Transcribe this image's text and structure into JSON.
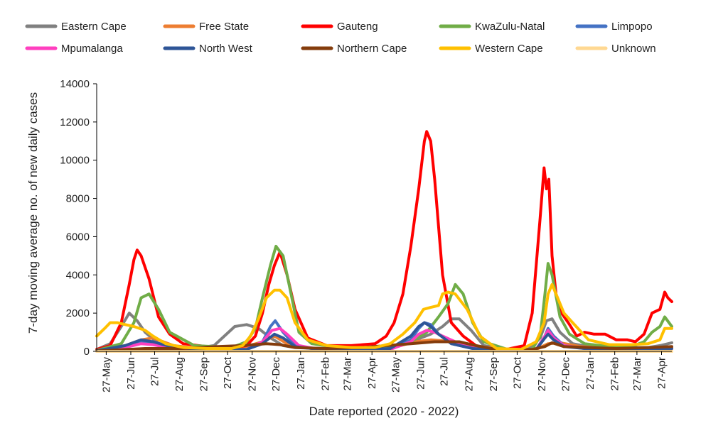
{
  "chart_data": {
    "type": "line",
    "xlabel": "Date reported (2020 - 2022)",
    "ylabel": "7-day moving average no. of new daily cases",
    "ylim": [
      0,
      14000
    ],
    "yticks": [
      0,
      2000,
      4000,
      6000,
      8000,
      10000,
      12000,
      14000
    ],
    "ytick_labels": [
      "0",
      "2000",
      "4000",
      "6000",
      "8000",
      "10000",
      "12000",
      "14000"
    ],
    "x_start": "2020-05-15",
    "x_end": "2022-05-10",
    "xtick_dates": [
      "2020-05-27",
      "2020-06-27",
      "2020-07-27",
      "2020-08-27",
      "2020-09-27",
      "2020-10-27",
      "2020-11-27",
      "2020-12-27",
      "2021-01-27",
      "2021-02-27",
      "2021-03-27",
      "2021-04-27",
      "2021-05-27",
      "2021-06-27",
      "2021-07-27",
      "2021-08-27",
      "2021-09-27",
      "2021-10-27",
      "2021-11-27",
      "2021-12-27",
      "2022-01-27",
      "2022-02-27",
      "2022-03-27",
      "2022-04-27"
    ],
    "xtick_labels": [
      "27-May",
      "27-Jun",
      "27-Jul",
      "27-Aug",
      "27-Sep",
      "27-Oct",
      "27-Nov",
      "27-Dec",
      "27-Jan",
      "27-Feb",
      "27-Mar",
      "27-Apr",
      "27-May",
      "27-Jun",
      "27-Jul",
      "27-Aug",
      "27-Sep",
      "27-Oct",
      "27-Nov",
      "27-Dec",
      "27-Jan",
      "27-Feb",
      "27-Mar",
      "27-Apr"
    ],
    "grid": false,
    "legend_position": "top",
    "series": [
      {
        "name": "Eastern Cape",
        "color": "#808080",
        "x": [
          "2020-05-15",
          "2020-06-01",
          "2020-06-15",
          "2020-06-25",
          "2020-07-05",
          "2020-07-15",
          "2020-08-01",
          "2020-08-20",
          "2020-09-15",
          "2020-10-10",
          "2020-11-05",
          "2020-11-20",
          "2020-12-05",
          "2020-12-20",
          "2021-01-05",
          "2021-01-20",
          "2021-02-15",
          "2021-03-15",
          "2021-04-15",
          "2021-05-15",
          "2021-06-15",
          "2021-07-10",
          "2021-07-25",
          "2021-08-05",
          "2021-08-15",
          "2021-08-30",
          "2021-09-15",
          "2021-10-15",
          "2021-11-10",
          "2021-11-25",
          "2021-12-03",
          "2021-12-10",
          "2021-12-20",
          "2022-01-05",
          "2022-01-25",
          "2022-02-15",
          "2022-03-15",
          "2022-04-10",
          "2022-04-25",
          "2022-05-10"
        ],
        "y": [
          100,
          400,
          1300,
          2000,
          1600,
          1000,
          400,
          200,
          150,
          300,
          1300,
          1400,
          1200,
          700,
          300,
          200,
          150,
          120,
          120,
          200,
          500,
          900,
          1300,
          1700,
          1700,
          1100,
          300,
          100,
          100,
          700,
          1600,
          1700,
          1000,
          400,
          250,
          200,
          200,
          200,
          300,
          450
        ]
      },
      {
        "name": "Free State",
        "color": "#ED7D31",
        "x": [
          "2020-05-15",
          "2020-06-20",
          "2020-07-10",
          "2020-07-25",
          "2020-08-20",
          "2020-10-01",
          "2020-11-15",
          "2020-12-10",
          "2020-12-25",
          "2021-01-10",
          "2021-02-10",
          "2021-04-01",
          "2021-05-20",
          "2021-06-20",
          "2021-07-10",
          "2021-08-10",
          "2021-09-10",
          "2021-10-15",
          "2021-11-20",
          "2021-12-05",
          "2021-12-20",
          "2022-01-15",
          "2022-02-20",
          "2022-04-01",
          "2022-05-10"
        ],
        "y": [
          50,
          300,
          600,
          700,
          300,
          100,
          200,
          500,
          800,
          400,
          150,
          100,
          150,
          500,
          600,
          500,
          250,
          80,
          100,
          400,
          450,
          250,
          150,
          150,
          200
        ]
      },
      {
        "name": "Gauteng",
        "color": "#FF0000",
        "x": [
          "2020-05-15",
          "2020-06-01",
          "2020-06-15",
          "2020-06-25",
          "2020-07-01",
          "2020-07-05",
          "2020-07-10",
          "2020-07-20",
          "2020-08-01",
          "2020-08-15",
          "2020-09-01",
          "2020-10-01",
          "2020-11-01",
          "2020-11-20",
          "2020-12-01",
          "2020-12-10",
          "2020-12-18",
          "2020-12-25",
          "2021-01-01",
          "2021-01-10",
          "2021-01-20",
          "2021-02-05",
          "2021-03-01",
          "2021-04-01",
          "2021-05-01",
          "2021-05-15",
          "2021-05-25",
          "2021-06-05",
          "2021-06-15",
          "2021-06-25",
          "2021-07-02",
          "2021-07-05",
          "2021-07-10",
          "2021-07-15",
          "2021-07-25",
          "2021-08-05",
          "2021-08-20",
          "2021-09-05",
          "2021-09-25",
          "2021-10-15",
          "2021-11-05",
          "2021-11-15",
          "2021-11-25",
          "2021-11-30",
          "2021-12-03",
          "2021-12-06",
          "2021-12-10",
          "2021-12-15",
          "2021-12-22",
          "2022-01-01",
          "2022-01-10",
          "2022-01-20",
          "2022-02-01",
          "2022-02-15",
          "2022-03-01",
          "2022-03-15",
          "2022-03-25",
          "2022-04-05",
          "2022-04-15",
          "2022-04-25",
          "2022-05-01",
          "2022-05-05",
          "2022-05-10"
        ],
        "y": [
          100,
          300,
          1500,
          3500,
          4800,
          5300,
          5000,
          3800,
          1800,
          900,
          400,
          250,
          200,
          300,
          800,
          2000,
          3500,
          4500,
          5200,
          4000,
          2200,
          700,
          300,
          300,
          400,
          800,
          1500,
          3000,
          5500,
          8500,
          11000,
          11500,
          11000,
          9000,
          4000,
          1500,
          800,
          300,
          120,
          120,
          300,
          2000,
          7000,
          9600,
          8500,
          9000,
          5000,
          3000,
          2000,
          1400,
          800,
          1000,
          900,
          900,
          600,
          600,
          500,
          900,
          2000,
          2200,
          3100,
          2800,
          2600
        ]
      },
      {
        "name": "KwaZulu-Natal",
        "color": "#70AD47",
        "x": [
          "2020-05-15",
          "2020-06-15",
          "2020-07-01",
          "2020-07-10",
          "2020-07-20",
          "2020-08-01",
          "2020-08-15",
          "2020-09-15",
          "2020-11-01",
          "2020-11-20",
          "2020-12-01",
          "2020-12-10",
          "2020-12-20",
          "2020-12-27",
          "2021-01-05",
          "2021-01-15",
          "2021-01-25",
          "2021-02-10",
          "2021-03-15",
          "2021-04-15",
          "2021-05-15",
          "2021-06-15",
          "2021-07-05",
          "2021-07-20",
          "2021-08-01",
          "2021-08-10",
          "2021-08-20",
          "2021-09-01",
          "2021-09-15",
          "2021-10-15",
          "2021-11-15",
          "2021-11-25",
          "2021-12-01",
          "2021-12-05",
          "2021-12-10",
          "2021-12-20",
          "2022-01-01",
          "2022-01-20",
          "2022-02-20",
          "2022-03-20",
          "2022-04-05",
          "2022-04-15",
          "2022-04-25",
          "2022-05-01",
          "2022-05-10"
        ],
        "y": [
          50,
          400,
          1500,
          2800,
          3000,
          2200,
          1000,
          300,
          200,
          500,
          1200,
          2800,
          4500,
          5500,
          5000,
          3000,
          1000,
          400,
          200,
          200,
          200,
          500,
          1000,
          1800,
          2500,
          3500,
          3000,
          1500,
          500,
          100,
          100,
          800,
          3000,
          4600,
          4000,
          1800,
          900,
          400,
          250,
          250,
          500,
          1000,
          1300,
          1800,
          1300
        ]
      },
      {
        "name": "Limpopo",
        "color": "#4472C4",
        "x": [
          "2020-05-15",
          "2020-06-20",
          "2020-07-10",
          "2020-07-25",
          "2020-08-20",
          "2020-10-01",
          "2020-11-20",
          "2020-12-10",
          "2020-12-20",
          "2020-12-26",
          "2021-01-05",
          "2021-01-20",
          "2021-02-20",
          "2021-04-15",
          "2021-05-20",
          "2021-06-15",
          "2021-06-25",
          "2021-07-02",
          "2021-07-10",
          "2021-07-20",
          "2021-08-05",
          "2021-09-01",
          "2021-10-15",
          "2021-11-20",
          "2021-12-01",
          "2021-12-05",
          "2021-12-12",
          "2021-12-25",
          "2022-01-20",
          "2022-03-20",
          "2022-05-10"
        ],
        "y": [
          30,
          200,
          500,
          400,
          150,
          50,
          100,
          500,
          1300,
          1600,
          1000,
          300,
          100,
          80,
          100,
          600,
          1200,
          1500,
          1400,
          900,
          400,
          150,
          50,
          100,
          800,
          1200,
          800,
          300,
          150,
          100,
          150
        ]
      },
      {
        "name": "Mpumalanga",
        "color": "#FF3FBF",
        "x": [
          "2020-05-15",
          "2020-06-20",
          "2020-07-10",
          "2020-07-25",
          "2020-08-20",
          "2020-10-01",
          "2020-11-20",
          "2020-12-10",
          "2020-12-22",
          "2021-01-01",
          "2021-01-10",
          "2021-01-25",
          "2021-02-20",
          "2021-04-15",
          "2021-05-20",
          "2021-06-15",
          "2021-06-25",
          "2021-07-05",
          "2021-07-15",
          "2021-07-25",
          "2021-08-10",
          "2021-09-01",
          "2021-10-15",
          "2021-11-20",
          "2021-12-01",
          "2021-12-05",
          "2021-12-12",
          "2021-12-25",
          "2022-01-20",
          "2022-03-20",
          "2022-05-10"
        ],
        "y": [
          30,
          200,
          400,
          350,
          150,
          50,
          100,
          500,
          1100,
          1200,
          900,
          300,
          100,
          80,
          100,
          500,
          900,
          1100,
          1000,
          800,
          500,
          200,
          50,
          100,
          800,
          1100,
          700,
          300,
          150,
          100,
          150
        ]
      },
      {
        "name": "North West",
        "color": "#2E5597",
        "x": [
          "2020-05-15",
          "2020-06-20",
          "2020-07-10",
          "2020-07-25",
          "2020-08-20",
          "2020-10-01",
          "2020-11-20",
          "2020-12-10",
          "2020-12-25",
          "2021-01-05",
          "2021-01-20",
          "2021-02-20",
          "2021-04-15",
          "2021-05-20",
          "2021-06-15",
          "2021-06-25",
          "2021-07-02",
          "2021-07-10",
          "2021-07-20",
          "2021-08-05",
          "2021-09-01",
          "2021-10-15",
          "2021-11-20",
          "2021-12-01",
          "2021-12-05",
          "2021-12-12",
          "2021-12-25",
          "2022-01-20",
          "2022-03-20",
          "2022-05-10"
        ],
        "y": [
          30,
          300,
          600,
          500,
          200,
          80,
          100,
          400,
          900,
          700,
          250,
          100,
          80,
          150,
          800,
          1300,
          1500,
          1300,
          900,
          400,
          150,
          50,
          100,
          700,
          900,
          600,
          250,
          150,
          100,
          150
        ]
      },
      {
        "name": "Northern Cape",
        "color": "#843C0C",
        "x": [
          "2020-05-15",
          "2020-07-15",
          "2020-09-01",
          "2020-10-15",
          "2020-11-15",
          "2020-12-15",
          "2021-01-01",
          "2021-01-20",
          "2021-03-01",
          "2021-04-15",
          "2021-05-15",
          "2021-06-15",
          "2021-07-15",
          "2021-08-15",
          "2021-09-05",
          "2021-10-01",
          "2021-11-15",
          "2021-12-01",
          "2021-12-10",
          "2021-12-25",
          "2022-01-25",
          "2022-03-01",
          "2022-04-15",
          "2022-05-10"
        ],
        "y": [
          20,
          150,
          150,
          250,
          300,
          400,
          350,
          200,
          150,
          200,
          300,
          400,
          500,
          500,
          300,
          100,
          100,
          250,
          450,
          250,
          200,
          150,
          200,
          250
        ]
      },
      {
        "name": "Western Cape",
        "color": "#FFC000",
        "x": [
          "2020-05-15",
          "2020-05-25",
          "2020-06-01",
          "2020-06-10",
          "2020-06-20",
          "2020-07-01",
          "2020-07-15",
          "2020-07-25",
          "2020-08-10",
          "2020-09-01",
          "2020-10-01",
          "2020-11-01",
          "2020-11-15",
          "2020-11-25",
          "2020-12-05",
          "2020-12-15",
          "2020-12-25",
          "2021-01-01",
          "2021-01-10",
          "2021-01-20",
          "2021-02-05",
          "2021-03-01",
          "2021-04-01",
          "2021-05-01",
          "2021-05-20",
          "2021-06-05",
          "2021-06-20",
          "2021-07-01",
          "2021-07-10",
          "2021-07-20",
          "2021-07-25",
          "2021-08-01",
          "2021-08-10",
          "2021-08-25",
          "2021-09-10",
          "2021-10-01",
          "2021-11-01",
          "2021-11-20",
          "2021-11-30",
          "2021-12-05",
          "2021-12-10",
          "2021-12-15",
          "2021-12-25",
          "2022-01-05",
          "2022-01-25",
          "2022-02-20",
          "2022-03-20",
          "2022-04-10",
          "2022-04-25",
          "2022-05-01",
          "2022-05-10"
        ],
        "y": [
          800,
          1200,
          1500,
          1500,
          1400,
          1300,
          1100,
          800,
          400,
          200,
          150,
          150,
          300,
          800,
          1700,
          2800,
          3200,
          3200,
          2800,
          1500,
          600,
          300,
          200,
          200,
          400,
          900,
          1500,
          2200,
          2300,
          2400,
          3000,
          3100,
          3000,
          2200,
          800,
          150,
          100,
          500,
          1500,
          3000,
          3500,
          3000,
          2000,
          1500,
          600,
          350,
          350,
          400,
          600,
          1200,
          1200
        ]
      },
      {
        "name": "Unknown",
        "color": "#FFD892",
        "x": [
          "2020-05-15",
          "2022-05-10"
        ],
        "y": [
          0,
          0
        ]
      }
    ]
  }
}
